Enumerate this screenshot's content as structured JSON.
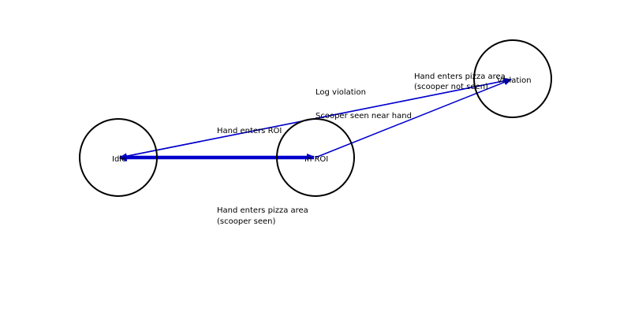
{
  "diagram": {
    "states": {
      "idle": "Idle",
      "in_roi": "In ROI",
      "violation": "Violation"
    },
    "transitions": {
      "hand_enters_roi": "Hand enters ROI",
      "hand_enters_pizza_seen_line1": "Hand enters pizza area",
      "hand_enters_pizza_seen_line2": "(scooper seen)",
      "hand_enters_pizza_not_seen_line1": "Hand enters pizza area",
      "hand_enters_pizza_not_seen_line2": "(scooper not seen)",
      "log_violation": "Log violation",
      "scooper_seen_near_hand": "Scooper seen near hand"
    },
    "colors": {
      "edge": "#0000cc",
      "node_stroke": "#000000",
      "background": "#ffffff"
    }
  }
}
